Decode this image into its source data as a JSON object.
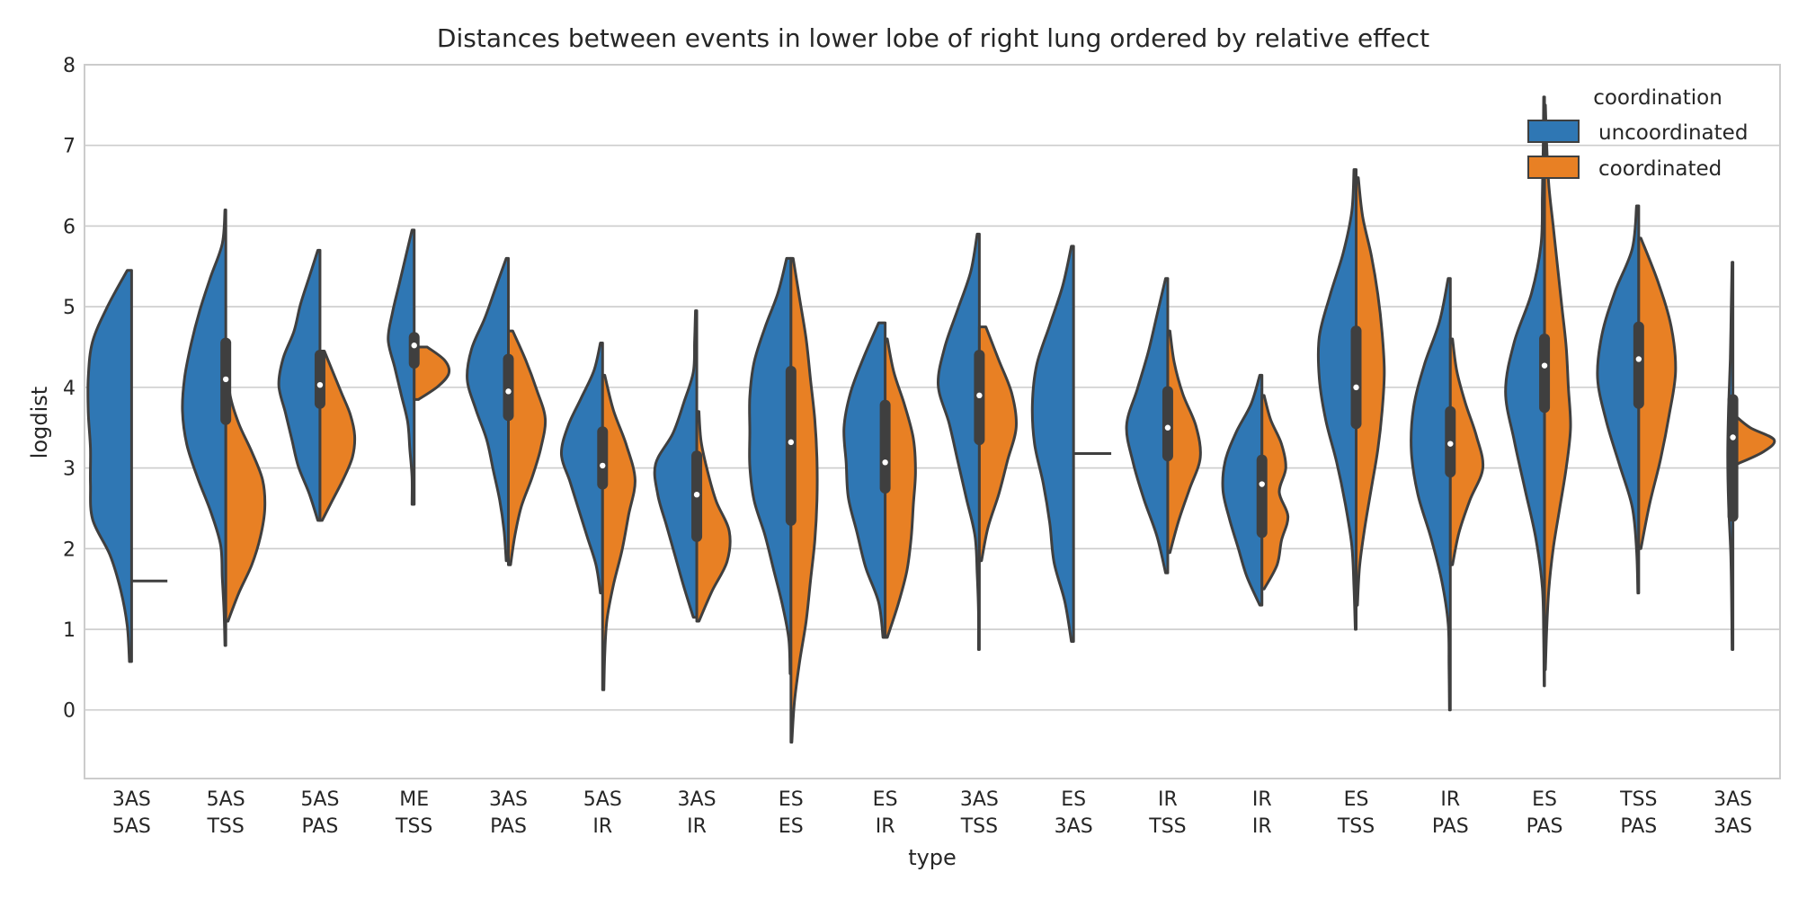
{
  "chart_data": {
    "type": "violin",
    "title": "Distances between events in lower lobe of right lung ordered by relative effect",
    "xlabel": "type",
    "ylabel": "logdist",
    "ylim": [
      -0.85,
      8
    ],
    "yticks": [
      0,
      1,
      2,
      3,
      4,
      5,
      6,
      7,
      8
    ],
    "grid": true,
    "split": true,
    "legend": {
      "title": "coordination",
      "placement": "top-right",
      "entries": [
        "uncoordinated",
        "coordinated"
      ]
    },
    "colors": {
      "uncoordinated": "#2f77b4",
      "coordinated": "#e88024",
      "edge": "#3f3f3f",
      "grid": "#cccccc"
    },
    "categories": [
      [
        "3AS",
        "5AS"
      ],
      [
        "5AS",
        "TSS"
      ],
      [
        "5AS",
        "PAS"
      ],
      [
        "ME",
        "TSS"
      ],
      [
        "3AS",
        "PAS"
      ],
      [
        "5AS",
        "IR"
      ],
      [
        "3AS",
        "IR"
      ],
      [
        "ES",
        "ES"
      ],
      [
        "ES",
        "IR"
      ],
      [
        "3AS",
        "TSS"
      ],
      [
        "ES",
        "3AS"
      ],
      [
        "IR",
        "TSS"
      ],
      [
        "IR",
        "IR"
      ],
      [
        "ES",
        "TSS"
      ],
      [
        "IR",
        "PAS"
      ],
      [
        "ES",
        "PAS"
      ],
      [
        "TSS",
        "PAS"
      ],
      [
        "3AS",
        "3AS"
      ]
    ],
    "series": [
      {
        "name": "uncoordinated",
        "violins": [
          {
            "ymin": 0.6,
            "ymax": 5.45,
            "w": [
              0.05,
              0.1,
              0.25,
              0.5,
              0.9,
              0.95,
              0.95,
              1,
              1,
              0.9,
              0.55,
              0.1
            ]
          },
          {
            "ymin": 0.8,
            "ymax": 6.2,
            "w": [
              0.02,
              0.04,
              0.08,
              0.12,
              0.35,
              0.65,
              0.9,
              1,
              0.95,
              0.8,
              0.6,
              0.35,
              0.08,
              0.02
            ]
          },
          {
            "ymin": 2.35,
            "ymax": 5.7,
            "w": [
              0.05,
              0.25,
              0.5,
              0.65,
              0.8,
              0.95,
              0.85,
              0.6,
              0.45,
              0.25,
              0.05
            ]
          },
          {
            "ymin": 2.55,
            "ymax": 5.95,
            "w": [
              0.05,
              0.05,
              0.1,
              0.15,
              0.3,
              0.45,
              0.6,
              0.5,
              0.35,
              0.2,
              0.05
            ]
          },
          {
            "ymin": 1.85,
            "ymax": 5.6,
            "w": [
              0.05,
              0.1,
              0.2,
              0.35,
              0.5,
              0.75,
              0.95,
              0.85,
              0.55,
              0.3,
              0.05
            ]
          },
          {
            "ymin": 1.45,
            "ymax": 4.55,
            "w": [
              0.05,
              0.15,
              0.35,
              0.55,
              0.75,
              0.95,
              0.8,
              0.5,
              0.2,
              0.05
            ]
          },
          {
            "ymin": 1.15,
            "ymax": 4.95,
            "w": [
              0.08,
              0.3,
              0.5,
              0.7,
              0.9,
              0.95,
              0.55,
              0.3,
              0.08,
              0.05,
              0.03
            ]
          },
          {
            "ymin": 0.45,
            "ymax": 5.6,
            "w": [
              0.02,
              0.05,
              0.2,
              0.4,
              0.6,
              0.85,
              0.95,
              0.95,
              0.95,
              0.85,
              0.6,
              0.3,
              0.1
            ]
          },
          {
            "ymin": 0.9,
            "ymax": 4.8,
            "w": [
              0.05,
              0.15,
              0.45,
              0.65,
              0.85,
              0.9,
              0.95,
              0.8,
              0.5,
              0.15
            ]
          },
          {
            "ymin": 0.75,
            "ymax": 5.9,
            "w": [
              0.02,
              0.02,
              0.05,
              0.1,
              0.3,
              0.5,
              0.7,
              0.95,
              0.8,
              0.5,
              0.2,
              0.05
            ]
          },
          {
            "ymin": 0.85,
            "ymax": 5.75,
            "w": [
              0.05,
              0.2,
              0.45,
              0.55,
              0.7,
              0.9,
              0.95,
              0.85,
              0.55,
              0.25,
              0.05
            ]
          },
          {
            "ymin": 1.7,
            "ymax": 5.35,
            "w": [
              0.05,
              0.25,
              0.55,
              0.8,
              0.95,
              0.7,
              0.45,
              0.25,
              0.05
            ]
          },
          {
            "ymin": 1.3,
            "ymax": 4.15,
            "w": [
              0.05,
              0.35,
              0.55,
              0.75,
              0.9,
              0.85,
              0.6,
              0.25,
              0.05
            ]
          },
          {
            "ymin": 1.0,
            "ymax": 6.7,
            "w": [
              0.02,
              0.05,
              0.1,
              0.25,
              0.45,
              0.7,
              0.85,
              0.85,
              0.6,
              0.3,
              0.1,
              0.05
            ]
          },
          {
            "ymin": 0.0,
            "ymax": 5.35,
            "w": [
              0.02,
              0.03,
              0.05,
              0.2,
              0.45,
              0.75,
              0.9,
              0.85,
              0.6,
              0.25,
              0.05
            ]
          },
          {
            "ymin": 0.3,
            "ymax": 7.6,
            "w": [
              0.01,
              0.02,
              0.05,
              0.2,
              0.45,
              0.7,
              0.9,
              0.7,
              0.3,
              0.08,
              0.05,
              0.03,
              0.02
            ]
          },
          {
            "ymin": 1.45,
            "ymax": 6.25,
            "w": [
              0.02,
              0.05,
              0.15,
              0.45,
              0.75,
              0.95,
              0.85,
              0.55,
              0.15,
              0.05
            ]
          },
          {
            "ymin": 0.75,
            "ymax": 5.55,
            "w": [
              0.02,
              0.03,
              0.05,
              0.1,
              0.12,
              0.1,
              0.06,
              0.04,
              0.02
            ]
          }
        ]
      },
      {
        "name": "coordinated",
        "violins": [
          {
            "ymin": 1.6,
            "ymax": 1.6,
            "w": [
              0.38
            ]
          },
          {
            "ymin": 1.1,
            "ymax": 4.25,
            "w": [
              0.05,
              0.3,
              0.6,
              0.8,
              0.9,
              0.85,
              0.6,
              0.3,
              0.1,
              0.05
            ]
          },
          {
            "ymin": 2.35,
            "ymax": 4.45,
            "w": [
              0.05,
              0.3,
              0.55,
              0.75,
              0.8,
              0.7,
              0.5,
              0.3,
              0.1
            ]
          },
          {
            "ymin": 3.85,
            "ymax": 4.5,
            "w": [
              0.1,
              0.55,
              0.8,
              0.7,
              0.3
            ]
          },
          {
            "ymin": 1.8,
            "ymax": 4.7,
            "w": [
              0.05,
              0.15,
              0.3,
              0.55,
              0.75,
              0.85,
              0.65,
              0.4,
              0.1
            ]
          },
          {
            "ymin": 0.25,
            "ymax": 4.15,
            "w": [
              0.03,
              0.05,
              0.1,
              0.25,
              0.45,
              0.6,
              0.75,
              0.55,
              0.25,
              0.05
            ]
          },
          {
            "ymin": 1.1,
            "ymax": 3.7,
            "w": [
              0.05,
              0.35,
              0.7,
              0.75,
              0.45,
              0.25,
              0.1,
              0.05
            ]
          },
          {
            "ymin": -0.4,
            "ymax": 5.6,
            "w": [
              0.02,
              0.08,
              0.2,
              0.35,
              0.45,
              0.55,
              0.6,
              0.6,
              0.55,
              0.45,
              0.35,
              0.2,
              0.05
            ]
          },
          {
            "ymin": 0.9,
            "ymax": 4.6,
            "w": [
              0.05,
              0.3,
              0.5,
              0.6,
              0.65,
              0.7,
              0.65,
              0.45,
              0.2,
              0.05
            ]
          },
          {
            "ymin": 1.85,
            "ymax": 4.75,
            "w": [
              0.05,
              0.2,
              0.45,
              0.65,
              0.85,
              0.75,
              0.45,
              0.15
            ]
          },
          {
            "ymin": 3.18,
            "ymax": 3.18,
            "w": [
              0.4
            ]
          },
          {
            "ymin": 1.95,
            "ymax": 4.7,
            "w": [
              0.05,
              0.25,
              0.5,
              0.75,
              0.65,
              0.35,
              0.15,
              0.05
            ]
          },
          {
            "ymin": 1.5,
            "ymax": 3.9,
            "w": [
              0.05,
              0.35,
              0.45,
              0.6,
              0.4,
              0.55,
              0.45,
              0.2,
              0.05
            ]
          },
          {
            "ymin": 1.3,
            "ymax": 6.6,
            "w": [
              0.03,
              0.08,
              0.2,
              0.35,
              0.5,
              0.6,
              0.65,
              0.6,
              0.5,
              0.35,
              0.15,
              0.05
            ]
          },
          {
            "ymin": 1.8,
            "ymax": 4.6,
            "w": [
              0.05,
              0.2,
              0.45,
              0.75,
              0.6,
              0.35,
              0.15,
              0.05
            ]
          },
          {
            "ymin": 0.5,
            "ymax": 7.5,
            "w": [
              0.02,
              0.05,
              0.1,
              0.2,
              0.35,
              0.5,
              0.6,
              0.55,
              0.5,
              0.4,
              0.3,
              0.2,
              0.1,
              0.05,
              0.02
            ]
          },
          {
            "ymin": 2.0,
            "ymax": 5.85,
            "w": [
              0.05,
              0.25,
              0.5,
              0.7,
              0.85,
              0.75,
              0.45,
              0.05
            ]
          },
          {
            "ymin": 3.05,
            "ymax": 3.65,
            "w": [
              0.1,
              0.7,
              0.95,
              0.4,
              0.05
            ]
          }
        ]
      }
    ],
    "boxes": [
      {
        "q1": 3.6,
        "med": 4.1,
        "q3": 4.55
      },
      {
        "q1": 3.8,
        "med": 4.03,
        "q3": 4.4
      },
      {
        "q1": 4.3,
        "med": 4.52,
        "q3": 4.62
      },
      {
        "q1": 3.65,
        "med": 3.95,
        "q3": 4.35
      },
      {
        "q1": 2.8,
        "med": 3.03,
        "q3": 3.45
      },
      {
        "q1": 2.15,
        "med": 2.67,
        "q3": 3.15
      },
      {
        "q1": 2.35,
        "med": 3.32,
        "q3": 4.2
      },
      {
        "q1": 2.75,
        "med": 3.07,
        "q3": 3.78
      },
      {
        "q1": 3.35,
        "med": 3.9,
        "q3": 4.4
      },
      {
        "q1": 3.15,
        "med": 3.5,
        "q3": 3.95
      },
      {
        "q1": 2.2,
        "med": 2.8,
        "q3": 3.1
      },
      {
        "q1": 3.55,
        "med": 4.0,
        "q3": 4.7
      },
      {
        "q1": 2.95,
        "med": 3.3,
        "q3": 3.7
      },
      {
        "q1": 3.75,
        "med": 4.27,
        "q3": 4.6
      },
      {
        "q1": 3.8,
        "med": 4.35,
        "q3": 4.75
      },
      {
        "q1": 2.4,
        "med": 3.38,
        "q3": 3.85
      }
    ],
    "box_positions": [
      1,
      2,
      3,
      4,
      5,
      6,
      7,
      8,
      9,
      11,
      12,
      13,
      14,
      15,
      16,
      17
    ]
  }
}
